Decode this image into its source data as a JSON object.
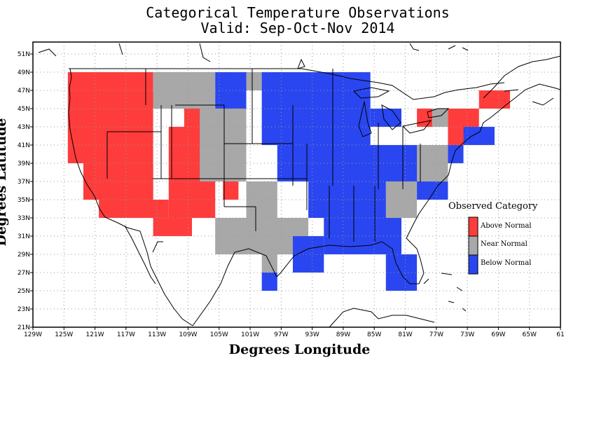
{
  "title": "Categorical Temperature Observations",
  "subtitle": "Valid: Sep-Oct-Nov 2014",
  "x_axis_label": "Degrees Longitude",
  "y_axis_label": "Degrees Latitude",
  "x_ticks": [
    "129W",
    "125W",
    "121W",
    "117W",
    "113W",
    "109W",
    "105W",
    "101W",
    "97W",
    "93W",
    "89W",
    "85W",
    "81W",
    "77W",
    "73W",
    "69W",
    "65W",
    "61"
  ],
  "y_ticks": [
    "51N",
    "49N",
    "47N",
    "45N",
    "43N",
    "41N",
    "39N",
    "37N",
    "35N",
    "33N",
    "31N",
    "29N",
    "27N",
    "25N",
    "23N",
    "21N"
  ],
  "legend": {
    "title": "Observed Category",
    "items": [
      {
        "label": "Above Normal",
        "color": "#ff3c3c"
      },
      {
        "label": "Near Normal",
        "color": "#a8a8a8"
      },
      {
        "label": "Below Normal",
        "color": "#2a46f0"
      }
    ]
  },
  "colors": {
    "above": "#ff3c3c",
    "near": "#a8a8a8",
    "below": "#2a46f0"
  },
  "map_extent": {
    "lon": [
      -129,
      -61
    ],
    "lat": [
      21,
      52
    ]
  },
  "grid": true,
  "cell_size_deg": 2,
  "categories": [
    {
      "category": "above",
      "lon": [
        -124.5,
        -113.5
      ],
      "lat": [
        39,
        49
      ]
    },
    {
      "category": "above",
      "lon": [
        -122.5,
        -113.5
      ],
      "lat": [
        35,
        39
      ]
    },
    {
      "category": "above",
      "lon": [
        -120.5,
        -115.5
      ],
      "lat": [
        33,
        35
      ]
    },
    {
      "category": "above",
      "lon": [
        -115.5,
        -111.5
      ],
      "lat": [
        33,
        35
      ]
    },
    {
      "category": "above",
      "lon": [
        -113.5,
        -108.5
      ],
      "lat": [
        31,
        33
      ]
    },
    {
      "category": "above",
      "lon": [
        -113.5,
        -111.5
      ],
      "lat": [
        45,
        47
      ]
    },
    {
      "category": "above",
      "lon": [
        -111.5,
        -105.5
      ],
      "lat": [
        33,
        43
      ]
    },
    {
      "category": "above",
      "lon": [
        -109.5,
        -105.5
      ],
      "lat": [
        43,
        45
      ]
    },
    {
      "category": "above",
      "lon": [
        -104.5,
        -102.5
      ],
      "lat": [
        35,
        37
      ]
    },
    {
      "category": "above",
      "lon": [
        -102.5,
        -100.5
      ],
      "lat": [
        31,
        33
      ]
    },
    {
      "category": "above",
      "lon": [
        -79.5,
        -77.5
      ],
      "lat": [
        43,
        45
      ]
    },
    {
      "category": "above",
      "lon": [
        -75.5,
        -71.5
      ],
      "lat": [
        41,
        45
      ]
    },
    {
      "category": "above",
      "lon": [
        -71.5,
        -67.5
      ],
      "lat": [
        45,
        47
      ]
    },
    {
      "category": "near",
      "lon": [
        -113.5,
        -105.5
      ],
      "lat": [
        45,
        49
      ]
    },
    {
      "category": "near",
      "lon": [
        -107.5,
        -101.5
      ],
      "lat": [
        37,
        45
      ]
    },
    {
      "category": "near",
      "lon": [
        -101.5,
        -97.5
      ],
      "lat": [
        33,
        37
      ]
    },
    {
      "category": "near",
      "lon": [
        -105.5,
        -93.5
      ],
      "lat": [
        29,
        33
      ]
    },
    {
      "category": "near",
      "lon": [
        -99.5,
        -97.5
      ],
      "lat": [
        27,
        29
      ]
    },
    {
      "category": "near",
      "lon": [
        -101.5,
        -95.5
      ],
      "lat": [
        47,
        49
      ]
    },
    {
      "category": "near",
      "lon": [
        -87.5,
        -83.5
      ],
      "lat": [
        31,
        35
      ]
    },
    {
      "category": "near",
      "lon": [
        -83.5,
        -79.5
      ],
      "lat": [
        33,
        37
      ]
    },
    {
      "category": "near",
      "lon": [
        -79.5,
        -75.5
      ],
      "lat": [
        37,
        41
      ]
    },
    {
      "category": "near",
      "lon": [
        -77.5,
        -75.5
      ],
      "lat": [
        43,
        45
      ]
    },
    {
      "category": "below",
      "lon": [
        -105.5,
        -101.5
      ],
      "lat": [
        45,
        49
      ]
    },
    {
      "category": "below",
      "lon": [
        -99.5,
        -85.5
      ],
      "lat": [
        41,
        49
      ]
    },
    {
      "category": "below",
      "lon": [
        -97.5,
        -79.5
      ],
      "lat": [
        37,
        41
      ]
    },
    {
      "category": "below",
      "lon": [
        -93.5,
        -83.5
      ],
      "lat": [
        33,
        37
      ]
    },
    {
      "category": "below",
      "lon": [
        -91.5,
        -81.5
      ],
      "lat": [
        29,
        33
      ]
    },
    {
      "category": "below",
      "lon": [
        -95.5,
        -91.5
      ],
      "lat": [
        27,
        31
      ]
    },
    {
      "category": "below",
      "lon": [
        -99.5,
        -97.5
      ],
      "lat": [
        25,
        27
      ]
    },
    {
      "category": "below",
      "lon": [
        -83.5,
        -79.5
      ],
      "lat": [
        25,
        29
      ]
    },
    {
      "category": "below",
      "lon": [
        -85.5,
        -81.5
      ],
      "lat": [
        43,
        45
      ]
    },
    {
      "category": "below",
      "lon": [
        -79.5,
        -75.5
      ],
      "lat": [
        35,
        37
      ]
    },
    {
      "category": "below",
      "lon": [
        -73.5,
        -69.5
      ],
      "lat": [
        41,
        43
      ]
    },
    {
      "category": "below",
      "lon": [
        -75.5,
        -73.5
      ],
      "lat": [
        39,
        41
      ]
    }
  ]
}
